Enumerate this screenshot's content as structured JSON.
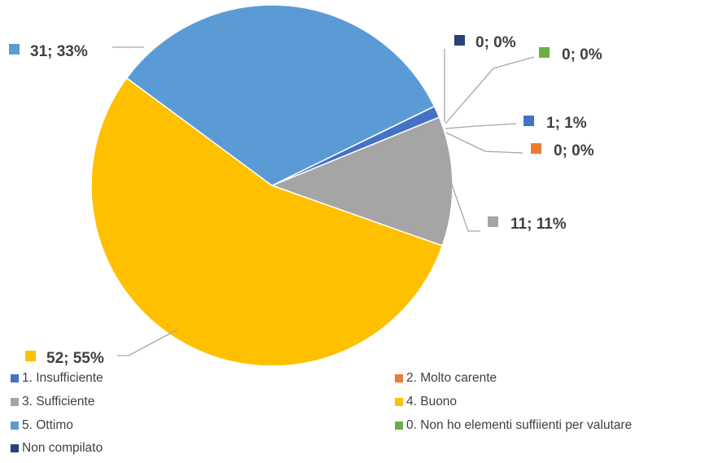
{
  "chart_data": {
    "type": "pie",
    "title": "",
    "slices": [
      {
        "name": "1. Insufficiente",
        "count": 1,
        "percent": "1%",
        "color": "#4472C4",
        "label": "1; 1%"
      },
      {
        "name": "2. Molto carente",
        "count": 0,
        "percent": "0%",
        "color": "#ED7D31",
        "label": "0; 0%"
      },
      {
        "name": "3. Sufficiente",
        "count": 11,
        "percent": "11%",
        "color": "#A5A5A5",
        "label": "11; 11%"
      },
      {
        "name": "4. Buono",
        "count": 52,
        "percent": "55%",
        "color": "#FFC000",
        "label": "52; 55%"
      },
      {
        "name": "5. Ottimo",
        "count": 31,
        "percent": "33%",
        "color": "#5B9BD5",
        "label": "31; 33%"
      },
      {
        "name": "0. Non ho elementi suffiienti per valutare",
        "count": 0,
        "percent": "0%",
        "color": "#70AD47",
        "label": "0; 0%"
      },
      {
        "name": "Non compilato",
        "count": 0,
        "percent": "0%",
        "color": "#264478",
        "label": "0; 0%"
      }
    ],
    "legend_position": "bottom"
  }
}
